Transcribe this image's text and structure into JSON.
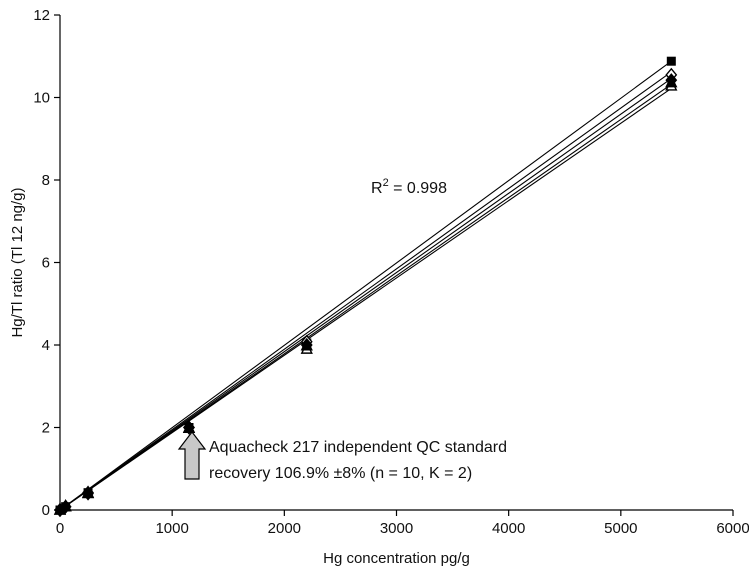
{
  "chart_data": {
    "type": "scatter",
    "title": "",
    "xlabel": "Hg concentration pg/g",
    "ylabel": "Hg/Tl ratio (Tl 12 ng/g)",
    "xlim": [
      0,
      6000
    ],
    "ylim": [
      0,
      12
    ],
    "xticks": [
      0,
      1000,
      2000,
      3000,
      4000,
      5000,
      6000
    ],
    "yticks": [
      0,
      2,
      4,
      6,
      8,
      10,
      12
    ],
    "grid": false,
    "legend": "none",
    "series": [
      {
        "marker": "square",
        "x": [
          0,
          50,
          250,
          1150,
          2200,
          5450
        ],
        "y": [
          0,
          0.08,
          0.42,
          2.0,
          4.05,
          10.88
        ],
        "fit_end": [
          5450,
          10.88
        ]
      },
      {
        "marker": "diamond-open",
        "x": [
          0,
          50,
          250,
          1150,
          2200,
          5450
        ],
        "y": [
          0,
          0.08,
          0.42,
          2.0,
          4.08,
          10.55
        ],
        "fit_end": [
          5450,
          10.62
        ]
      },
      {
        "marker": "diamond",
        "x": [
          0,
          50,
          250,
          1150,
          2200,
          5450
        ],
        "y": [
          0,
          0.08,
          0.4,
          2.0,
          4.0,
          10.42
        ],
        "fit_end": [
          5450,
          10.46
        ]
      },
      {
        "marker": "triangle-open",
        "x": [
          0,
          50,
          250,
          1150,
          2200,
          5450
        ],
        "y": [
          0,
          0.08,
          0.4,
          1.98,
          3.9,
          10.28
        ],
        "fit_end": [
          5450,
          10.32
        ]
      },
      {
        "marker": "triangle",
        "x": [
          0,
          50,
          250,
          1150,
          2200,
          5450
        ],
        "y": [
          0,
          0.08,
          0.41,
          1.99,
          3.98,
          10.36
        ],
        "fit_end": [
          5450,
          10.22
        ]
      }
    ],
    "annotations": {
      "r2_base": "R",
      "r2_sup": "2",
      "r2_value": " = 0.998",
      "qc_line1": "Aquacheck 217 independent QC standard",
      "qc_line2": "recovery 106.9% ±8% (n = 10, K = 2)",
      "arrow_color": "#c8c8c8"
    }
  }
}
